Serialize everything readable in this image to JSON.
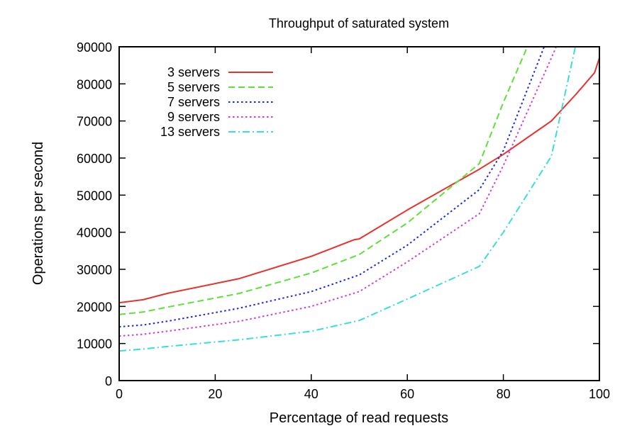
{
  "chart_data": {
    "type": "line",
    "title": "Throughput of saturated system",
    "xlabel": "Percentage of read requests",
    "ylabel": "Operations per second",
    "xlim": [
      0,
      100
    ],
    "ylim": [
      0,
      90000
    ],
    "xticks": [
      0,
      20,
      40,
      60,
      80,
      100
    ],
    "yticks": [
      0,
      10000,
      20000,
      30000,
      40000,
      50000,
      60000,
      70000,
      80000,
      90000
    ],
    "grid": false,
    "legend_position": "top-left",
    "series": [
      {
        "name": "3 servers",
        "color": "#e8312a",
        "dash": "solid",
        "x": [
          0,
          5,
          10,
          25,
          40,
          49,
          50,
          60,
          75,
          80,
          90,
          95,
          99,
          100
        ],
        "y": [
          21000,
          21800,
          23500,
          27500,
          33500,
          38000,
          38200,
          46000,
          57000,
          61000,
          70000,
          77000,
          83000,
          87000
        ]
      },
      {
        "name": "5 servers",
        "color": "#5ee03a",
        "dash": "dashed",
        "x": [
          0,
          5,
          10,
          25,
          40,
          50,
          60,
          75,
          80,
          85
        ],
        "y": [
          17800,
          18500,
          19800,
          23500,
          29000,
          34000,
          42500,
          58500,
          75000,
          90000
        ]
      },
      {
        "name": "7 servers",
        "color": "#1a28e0",
        "dash": "dotted",
        "x": [
          0,
          5,
          10,
          25,
          40,
          50,
          60,
          75,
          80,
          88.5
        ],
        "y": [
          14500,
          15000,
          16000,
          19500,
          24000,
          28500,
          36500,
          51500,
          62000,
          90000
        ]
      },
      {
        "name": "9 servers",
        "color": "#d03cd6",
        "dash": "dotted",
        "x": [
          0,
          5,
          10,
          25,
          40,
          50,
          60,
          75,
          80,
          90,
          91
        ],
        "y": [
          12000,
          12500,
          13300,
          16000,
          20000,
          24000,
          32000,
          45000,
          58000,
          87000,
          90000
        ]
      },
      {
        "name": "13 servers",
        "color": "#3adcdc",
        "dash": "dashdot",
        "x": [
          0,
          5,
          10,
          25,
          40,
          50,
          60,
          75,
          80,
          90,
          95
        ],
        "y": [
          8000,
          8500,
          9200,
          11000,
          13300,
          16200,
          22000,
          30800,
          40000,
          60500,
          90000
        ]
      }
    ]
  }
}
